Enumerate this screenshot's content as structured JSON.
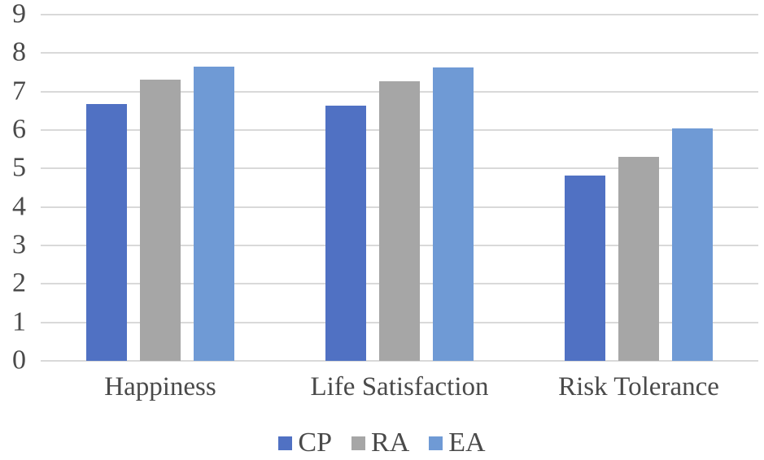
{
  "chart_data": {
    "type": "bar",
    "title": "",
    "xlabel": "",
    "ylabel": "",
    "categories": [
      "Happiness",
      "Life Satisfaction",
      "Risk Tolerance"
    ],
    "series": [
      {
        "name": "CP",
        "color": "#5071c3",
        "values": [
          6.68,
          6.64,
          4.82
        ]
      },
      {
        "name": "RA",
        "color": "#a6a6a6",
        "values": [
          7.32,
          7.27,
          5.3
        ]
      },
      {
        "name": "EA",
        "color": "#6f9ad5",
        "values": [
          7.64,
          7.62,
          6.05
        ]
      }
    ],
    "ylim": [
      0,
      9
    ],
    "yticks": [
      0,
      1,
      2,
      3,
      4,
      5,
      6,
      7,
      8,
      9
    ],
    "grid": true,
    "legend_position": "bottom"
  },
  "colors": {
    "gridline": "#d9d9d9",
    "axis_text": "#4a4a4a",
    "background": "#ffffff"
  }
}
